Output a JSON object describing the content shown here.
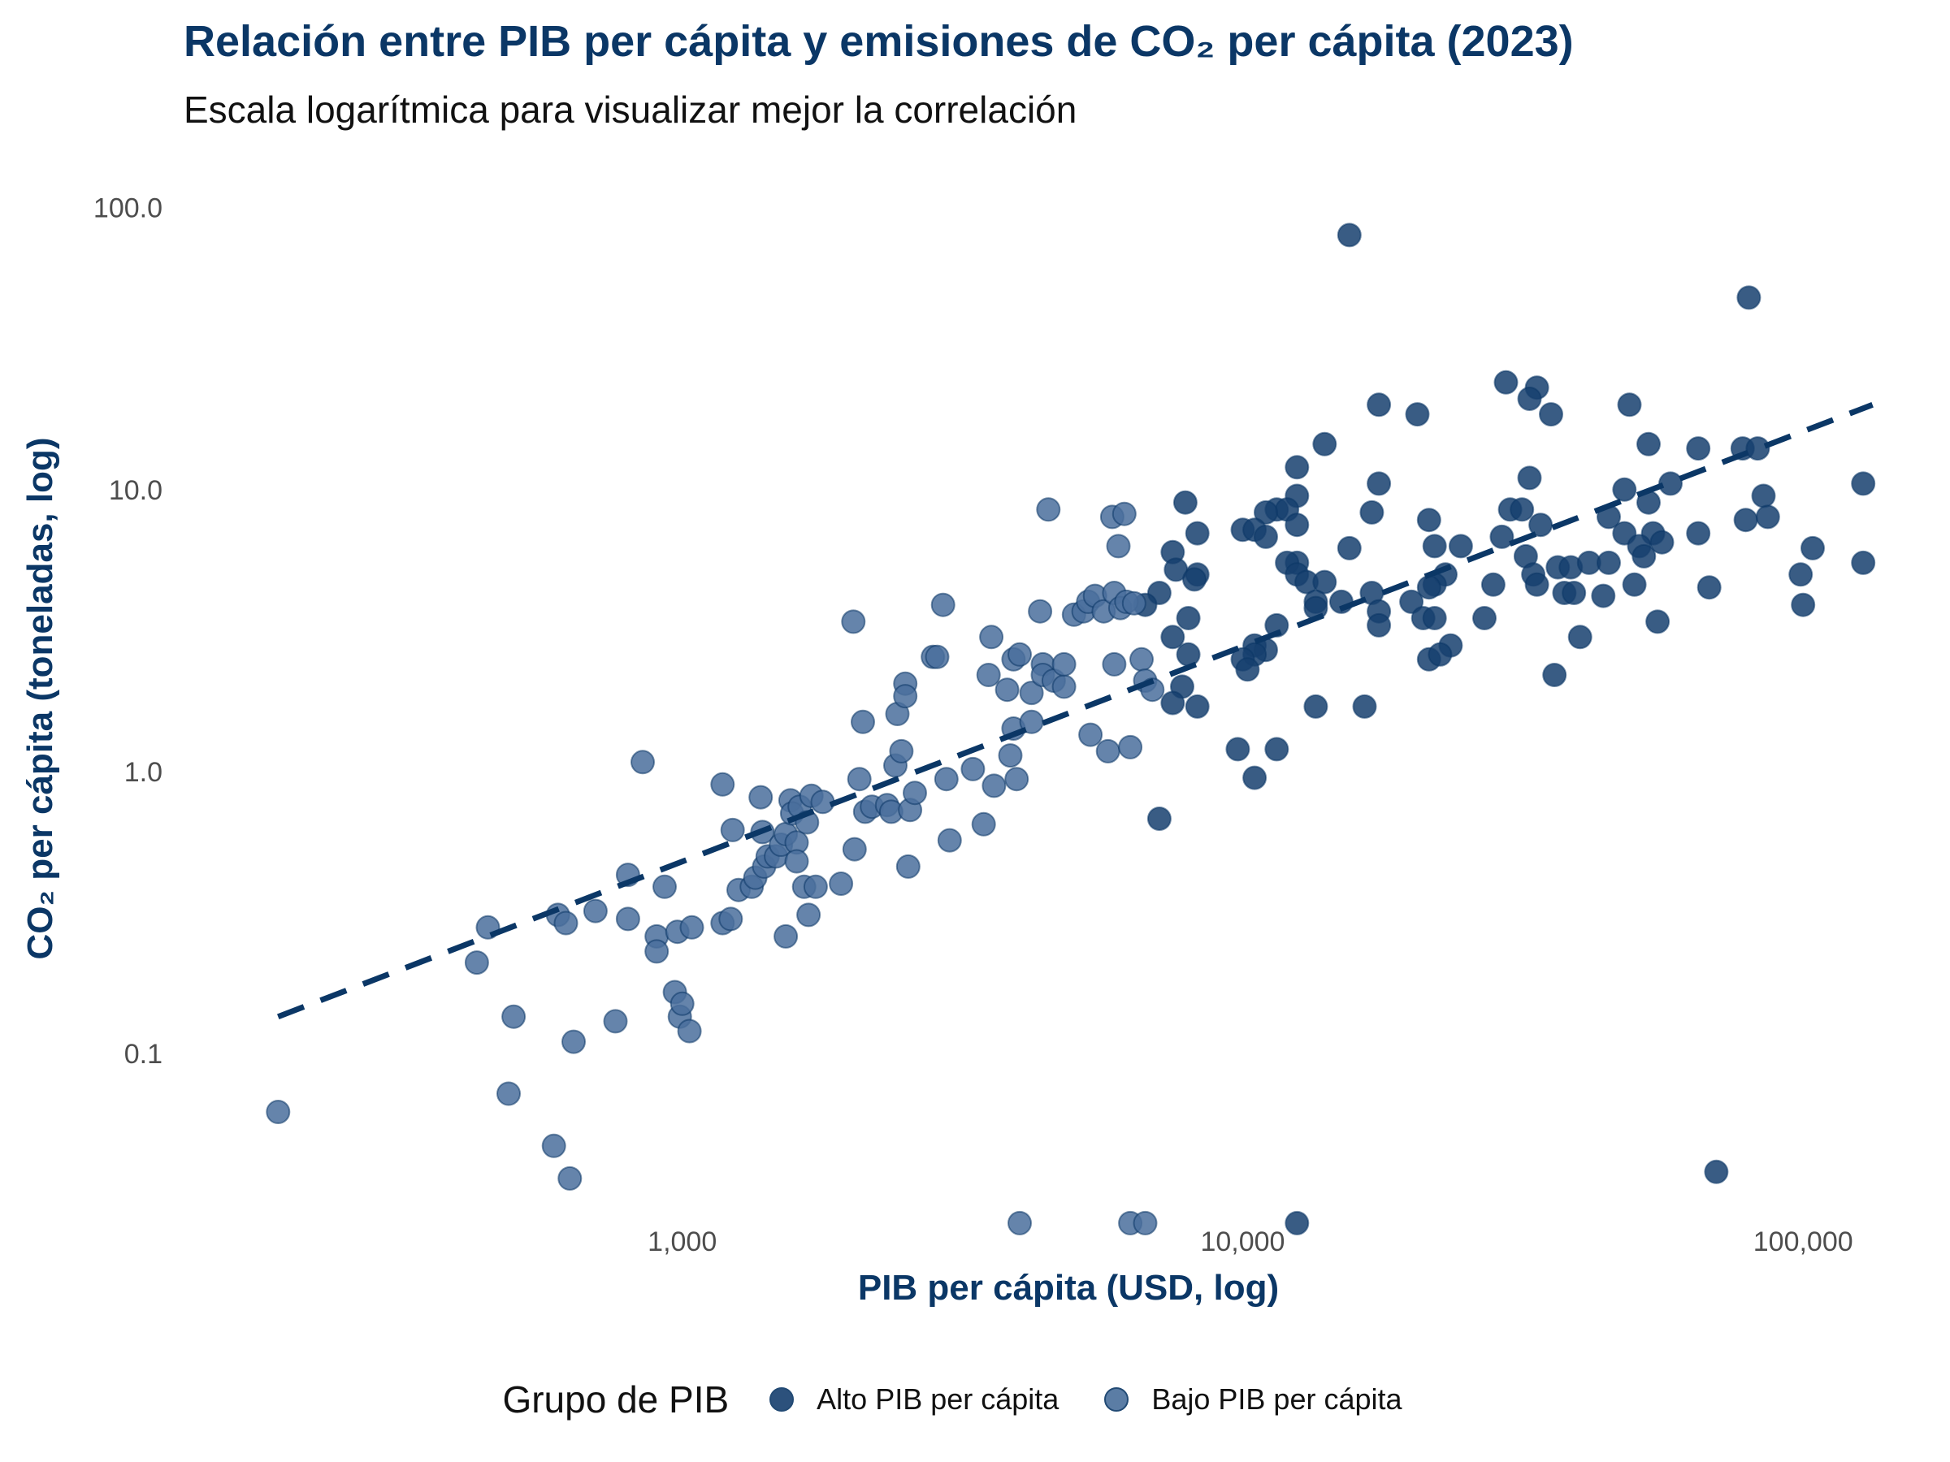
{
  "chart_data": {
    "type": "scatter",
    "title": "Relación entre PIB per cápita y emisiones de CO₂ per cápita (2023)",
    "subtitle": "Escala logarítmica para visualizar mejor la correlación",
    "xlabel": "PIB per cápita (USD, log)",
    "ylabel": "CO₂ per cápita (toneladas, log)",
    "x_scale": "log",
    "y_scale": "log",
    "xlim": [
      165,
      140000
    ],
    "ylim": [
      0.026,
      140
    ],
    "x_ticks": [
      {
        "value": 1000,
        "label": "1,000"
      },
      {
        "value": 10000,
        "label": "10,000"
      },
      {
        "value": 100000,
        "label": "100,000"
      }
    ],
    "y_ticks": [
      {
        "value": 0.1,
        "label": "0.1"
      },
      {
        "value": 1,
        "label": "1.0"
      },
      {
        "value": 10,
        "label": "10.0"
      },
      {
        "value": 100,
        "label": "100.0"
      }
    ],
    "grid": false,
    "legend": {
      "title": "Grupo de PIB",
      "placement": "bottom"
    },
    "colors": {
      "alto": "#163f6e",
      "bajo": "#4a6f9c",
      "trend": "#0b3766",
      "title": "#0b3766"
    },
    "trend_line": {
      "style": "dashed",
      "points": [
        [
          190,
          0.135
        ],
        [
          133000,
          20
        ]
      ]
    },
    "series": [
      {
        "name": "Alto PIB per cápita",
        "color": "#163f6e",
        "points": [
          [
            15500,
            80
          ],
          [
            80000,
            48
          ],
          [
            29500,
            24
          ],
          [
            33500,
            23
          ],
          [
            32500,
            21
          ],
          [
            17500,
            20
          ],
          [
            49000,
            20
          ],
          [
            20500,
            18.5
          ],
          [
            35500,
            18.5
          ],
          [
            14000,
            14.5
          ],
          [
            53000,
            14.5
          ],
          [
            65000,
            14
          ],
          [
            78000,
            14
          ],
          [
            83000,
            14
          ],
          [
            12500,
            12
          ],
          [
            32500,
            11
          ],
          [
            17500,
            10.5
          ],
          [
            128000,
            10.5
          ],
          [
            58000,
            10.5
          ],
          [
            12500,
            9.5
          ],
          [
            7900,
            9
          ],
          [
            53000,
            9
          ],
          [
            85000,
            9.5
          ],
          [
            48000,
            10
          ],
          [
            30000,
            8.5
          ],
          [
            31500,
            8.5
          ],
          [
            11500,
            8.5
          ],
          [
            12000,
            8.5
          ],
          [
            11000,
            8.3
          ],
          [
            17000,
            8.3
          ],
          [
            45000,
            8
          ],
          [
            86500,
            8
          ],
          [
            79000,
            7.8
          ],
          [
            21500,
            7.8
          ],
          [
            12500,
            7.5
          ],
          [
            34000,
            7.5
          ],
          [
            10000,
            7.2
          ],
          [
            10500,
            7.2
          ],
          [
            8300,
            7
          ],
          [
            48000,
            7
          ],
          [
            54000,
            7
          ],
          [
            65000,
            7
          ],
          [
            11000,
            6.8
          ],
          [
            29000,
            6.8
          ],
          [
            22000,
            6.3
          ],
          [
            24500,
            6.3
          ],
          [
            51000,
            6.3
          ],
          [
            56000,
            6.5
          ],
          [
            15500,
            6.2
          ],
          [
            104000,
            6.2
          ],
          [
            7500,
            6
          ],
          [
            32000,
            5.8
          ],
          [
            52000,
            5.8
          ],
          [
            7600,
            5.2
          ],
          [
            12500,
            5.5
          ],
          [
            12000,
            5.5
          ],
          [
            36500,
            5.3
          ],
          [
            38500,
            5.3
          ],
          [
            41500,
            5.5
          ],
          [
            45000,
            5.5
          ],
          [
            128000,
            5.5
          ],
          [
            8300,
            5
          ],
          [
            12500,
            5
          ],
          [
            8200,
            4.8
          ],
          [
            13000,
            4.7
          ],
          [
            14000,
            4.7
          ],
          [
            23000,
            5
          ],
          [
            33000,
            5
          ],
          [
            99000,
            5
          ],
          [
            22000,
            4.6
          ],
          [
            28000,
            4.6
          ],
          [
            33500,
            4.6
          ],
          [
            50000,
            4.6
          ],
          [
            68000,
            4.5
          ],
          [
            21500,
            4.5
          ],
          [
            7100,
            4.3
          ],
          [
            37500,
            4.3
          ],
          [
            39000,
            4.3
          ],
          [
            44000,
            4.2
          ],
          [
            15000,
            4
          ],
          [
            17000,
            4.3
          ],
          [
            13500,
            4
          ],
          [
            20000,
            4
          ],
          [
            6700,
            3.9
          ],
          [
            17500,
            3.7
          ],
          [
            13500,
            3.8
          ],
          [
            21000,
            3.5
          ],
          [
            22000,
            3.5
          ],
          [
            8000,
            3.5
          ],
          [
            11500,
            3.3
          ],
          [
            27000,
            3.5
          ],
          [
            55000,
            3.4
          ],
          [
            17500,
            3.3
          ],
          [
            100000,
            3.9
          ],
          [
            7500,
            3
          ],
          [
            40000,
            3
          ],
          [
            23500,
            2.8
          ],
          [
            10500,
            2.8
          ],
          [
            11000,
            2.7
          ],
          [
            8000,
            2.6
          ],
          [
            10500,
            2.6
          ],
          [
            21500,
            2.5
          ],
          [
            22500,
            2.6
          ],
          [
            10000,
            2.5
          ],
          [
            36000,
            2.2
          ],
          [
            10200,
            2.3
          ],
          [
            7800,
            2
          ],
          [
            7500,
            1.75
          ],
          [
            8300,
            1.7
          ],
          [
            13500,
            1.7
          ],
          [
            16500,
            1.7
          ],
          [
            9800,
            1.2
          ],
          [
            11500,
            1.2
          ],
          [
            10500,
            0.95
          ],
          [
            7100,
            0.68
          ],
          [
            70000,
            0.038
          ],
          [
            12500,
            0.025
          ]
        ]
      },
      {
        "name": "Bajo PIB per cápita",
        "color": "#4a6f9c",
        "points": [
          [
            190,
            0.062
          ],
          [
            430,
            0.21
          ],
          [
            450,
            0.28
          ],
          [
            490,
            0.072
          ],
          [
            500,
            0.135
          ],
          [
            590,
            0.047
          ],
          [
            600,
            0.31
          ],
          [
            620,
            0.29
          ],
          [
            630,
            0.036
          ],
          [
            640,
            0.11
          ],
          [
            700,
            0.32
          ],
          [
            760,
            0.13
          ],
          [
            800,
            0.43
          ],
          [
            800,
            0.3
          ],
          [
            850,
            1.08
          ],
          [
            900,
            0.26
          ],
          [
            900,
            0.23
          ],
          [
            930,
            0.39
          ],
          [
            970,
            0.165
          ],
          [
            980,
            0.27
          ],
          [
            990,
            0.135
          ],
          [
            1000,
            0.15
          ],
          [
            1030,
            0.12
          ],
          [
            1040,
            0.28
          ],
          [
            1180,
            0.9
          ],
          [
            1180,
            0.29
          ],
          [
            1220,
            0.3
          ],
          [
            1230,
            0.62
          ],
          [
            1260,
            0.38
          ],
          [
            1330,
            0.39
          ],
          [
            1350,
            0.42
          ],
          [
            1380,
            0.81
          ],
          [
            1390,
            0.61
          ],
          [
            1400,
            0.46
          ],
          [
            1420,
            0.5
          ],
          [
            1470,
            0.5
          ],
          [
            1500,
            0.55
          ],
          [
            1530,
            0.6
          ],
          [
            1530,
            0.26
          ],
          [
            1560,
            0.79
          ],
          [
            1570,
            0.71
          ],
          [
            1600,
            0.56
          ],
          [
            1600,
            0.48
          ],
          [
            1620,
            0.75
          ],
          [
            1650,
            0.39
          ],
          [
            1670,
            0.66
          ],
          [
            1680,
            0.31
          ],
          [
            1700,
            0.82
          ],
          [
            1730,
            0.39
          ],
          [
            1780,
            0.78
          ],
          [
            1920,
            0.4
          ],
          [
            2020,
            3.4
          ],
          [
            2030,
            0.53
          ],
          [
            2070,
            0.94
          ],
          [
            2100,
            1.5
          ],
          [
            2120,
            0.72
          ],
          [
            2180,
            0.75
          ],
          [
            2320,
            0.76
          ],
          [
            2360,
            0.72
          ],
          [
            2400,
            1.05
          ],
          [
            2420,
            1.6
          ],
          [
            2460,
            1.18
          ],
          [
            2500,
            2.05
          ],
          [
            2500,
            1.85
          ],
          [
            2530,
            0.46
          ],
          [
            2550,
            0.73
          ],
          [
            2600,
            0.84
          ],
          [
            2800,
            2.55
          ],
          [
            2850,
            2.55
          ],
          [
            2920,
            3.9
          ],
          [
            2960,
            0.94
          ],
          [
            3000,
            0.57
          ],
          [
            3300,
            1.02
          ],
          [
            3450,
            0.65
          ],
          [
            3520,
            2.2
          ],
          [
            3560,
            3.0
          ],
          [
            3600,
            0.89
          ],
          [
            3800,
            1.95
          ],
          [
            3850,
            1.14
          ],
          [
            3900,
            2.5
          ],
          [
            3900,
            1.42
          ],
          [
            3950,
            0.94
          ],
          [
            4000,
            2.6
          ],
          [
            4000,
            0.025
          ],
          [
            4200,
            1.9
          ],
          [
            4200,
            1.5
          ],
          [
            4350,
            3.7
          ],
          [
            4400,
            2.4
          ],
          [
            4400,
            2.2
          ],
          [
            4500,
            8.5
          ],
          [
            4600,
            2.1
          ],
          [
            4800,
            2.0
          ],
          [
            4800,
            2.4
          ],
          [
            5000,
            3.6
          ],
          [
            5200,
            3.7
          ],
          [
            5300,
            4.0
          ],
          [
            5350,
            1.35
          ],
          [
            5450,
            4.2
          ],
          [
            5650,
            3.7
          ],
          [
            5750,
            1.18
          ],
          [
            5850,
            8.0
          ],
          [
            5900,
            4.3
          ],
          [
            5900,
            2.4
          ],
          [
            6000,
            6.3
          ],
          [
            6050,
            3.8
          ],
          [
            6150,
            8.2
          ],
          [
            6200,
            4.0
          ],
          [
            6300,
            1.22
          ],
          [
            6300,
            0.025
          ],
          [
            6400,
            3.95
          ],
          [
            6600,
            2.5
          ],
          [
            6700,
            2.1
          ],
          [
            6700,
            0.025
          ],
          [
            6900,
            1.95
          ]
        ]
      }
    ]
  }
}
